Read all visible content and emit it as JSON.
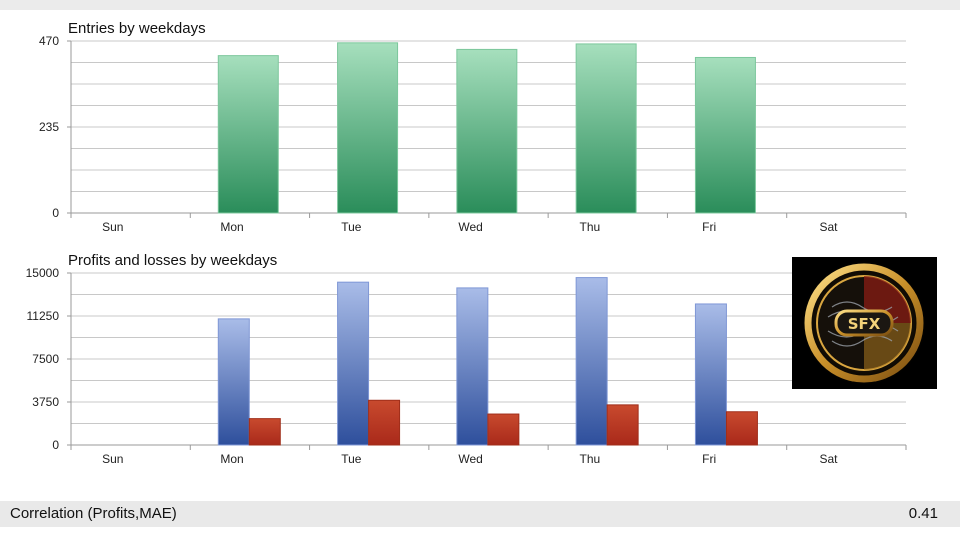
{
  "chart_data": [
    {
      "type": "bar",
      "title": "Entries by weekdays",
      "categories": [
        "Sun",
        "Mon",
        "Tue",
        "Wed",
        "Thu",
        "Fri",
        "Sat"
      ],
      "series": [
        {
          "values": [
            0,
            430,
            465,
            447,
            462,
            425,
            0
          ],
          "color": "#2e8b57"
        }
      ],
      "ylim": [
        0,
        470
      ],
      "yticks": [
        "470",
        "235",
        "0"
      ],
      "grid": true,
      "legend": "none"
    },
    {
      "type": "bar",
      "title": "Profits and losses by weekdays",
      "categories": [
        "Sun",
        "Mon",
        "Tue",
        "Wed",
        "Thu",
        "Fri",
        "Sat"
      ],
      "series": [
        {
          "values": [
            0,
            11000,
            14200,
            13700,
            14600,
            12300,
            0
          ],
          "color": "#4a6fc0"
        },
        {
          "values": [
            0,
            2300,
            3900,
            2700,
            3500,
            2900,
            0
          ],
          "color": "#b8341e"
        }
      ],
      "ylim": [
        0,
        15000
      ],
      "yticks": [
        "15000",
        "11250",
        "7500",
        "3750",
        "0"
      ],
      "grid": true,
      "legend": "none"
    }
  ],
  "logo": {
    "text": "SFX",
    "icon": "sfx-logo"
  },
  "status": {
    "label": "Correlation (Profits,MAE)",
    "value": "0.41"
  }
}
